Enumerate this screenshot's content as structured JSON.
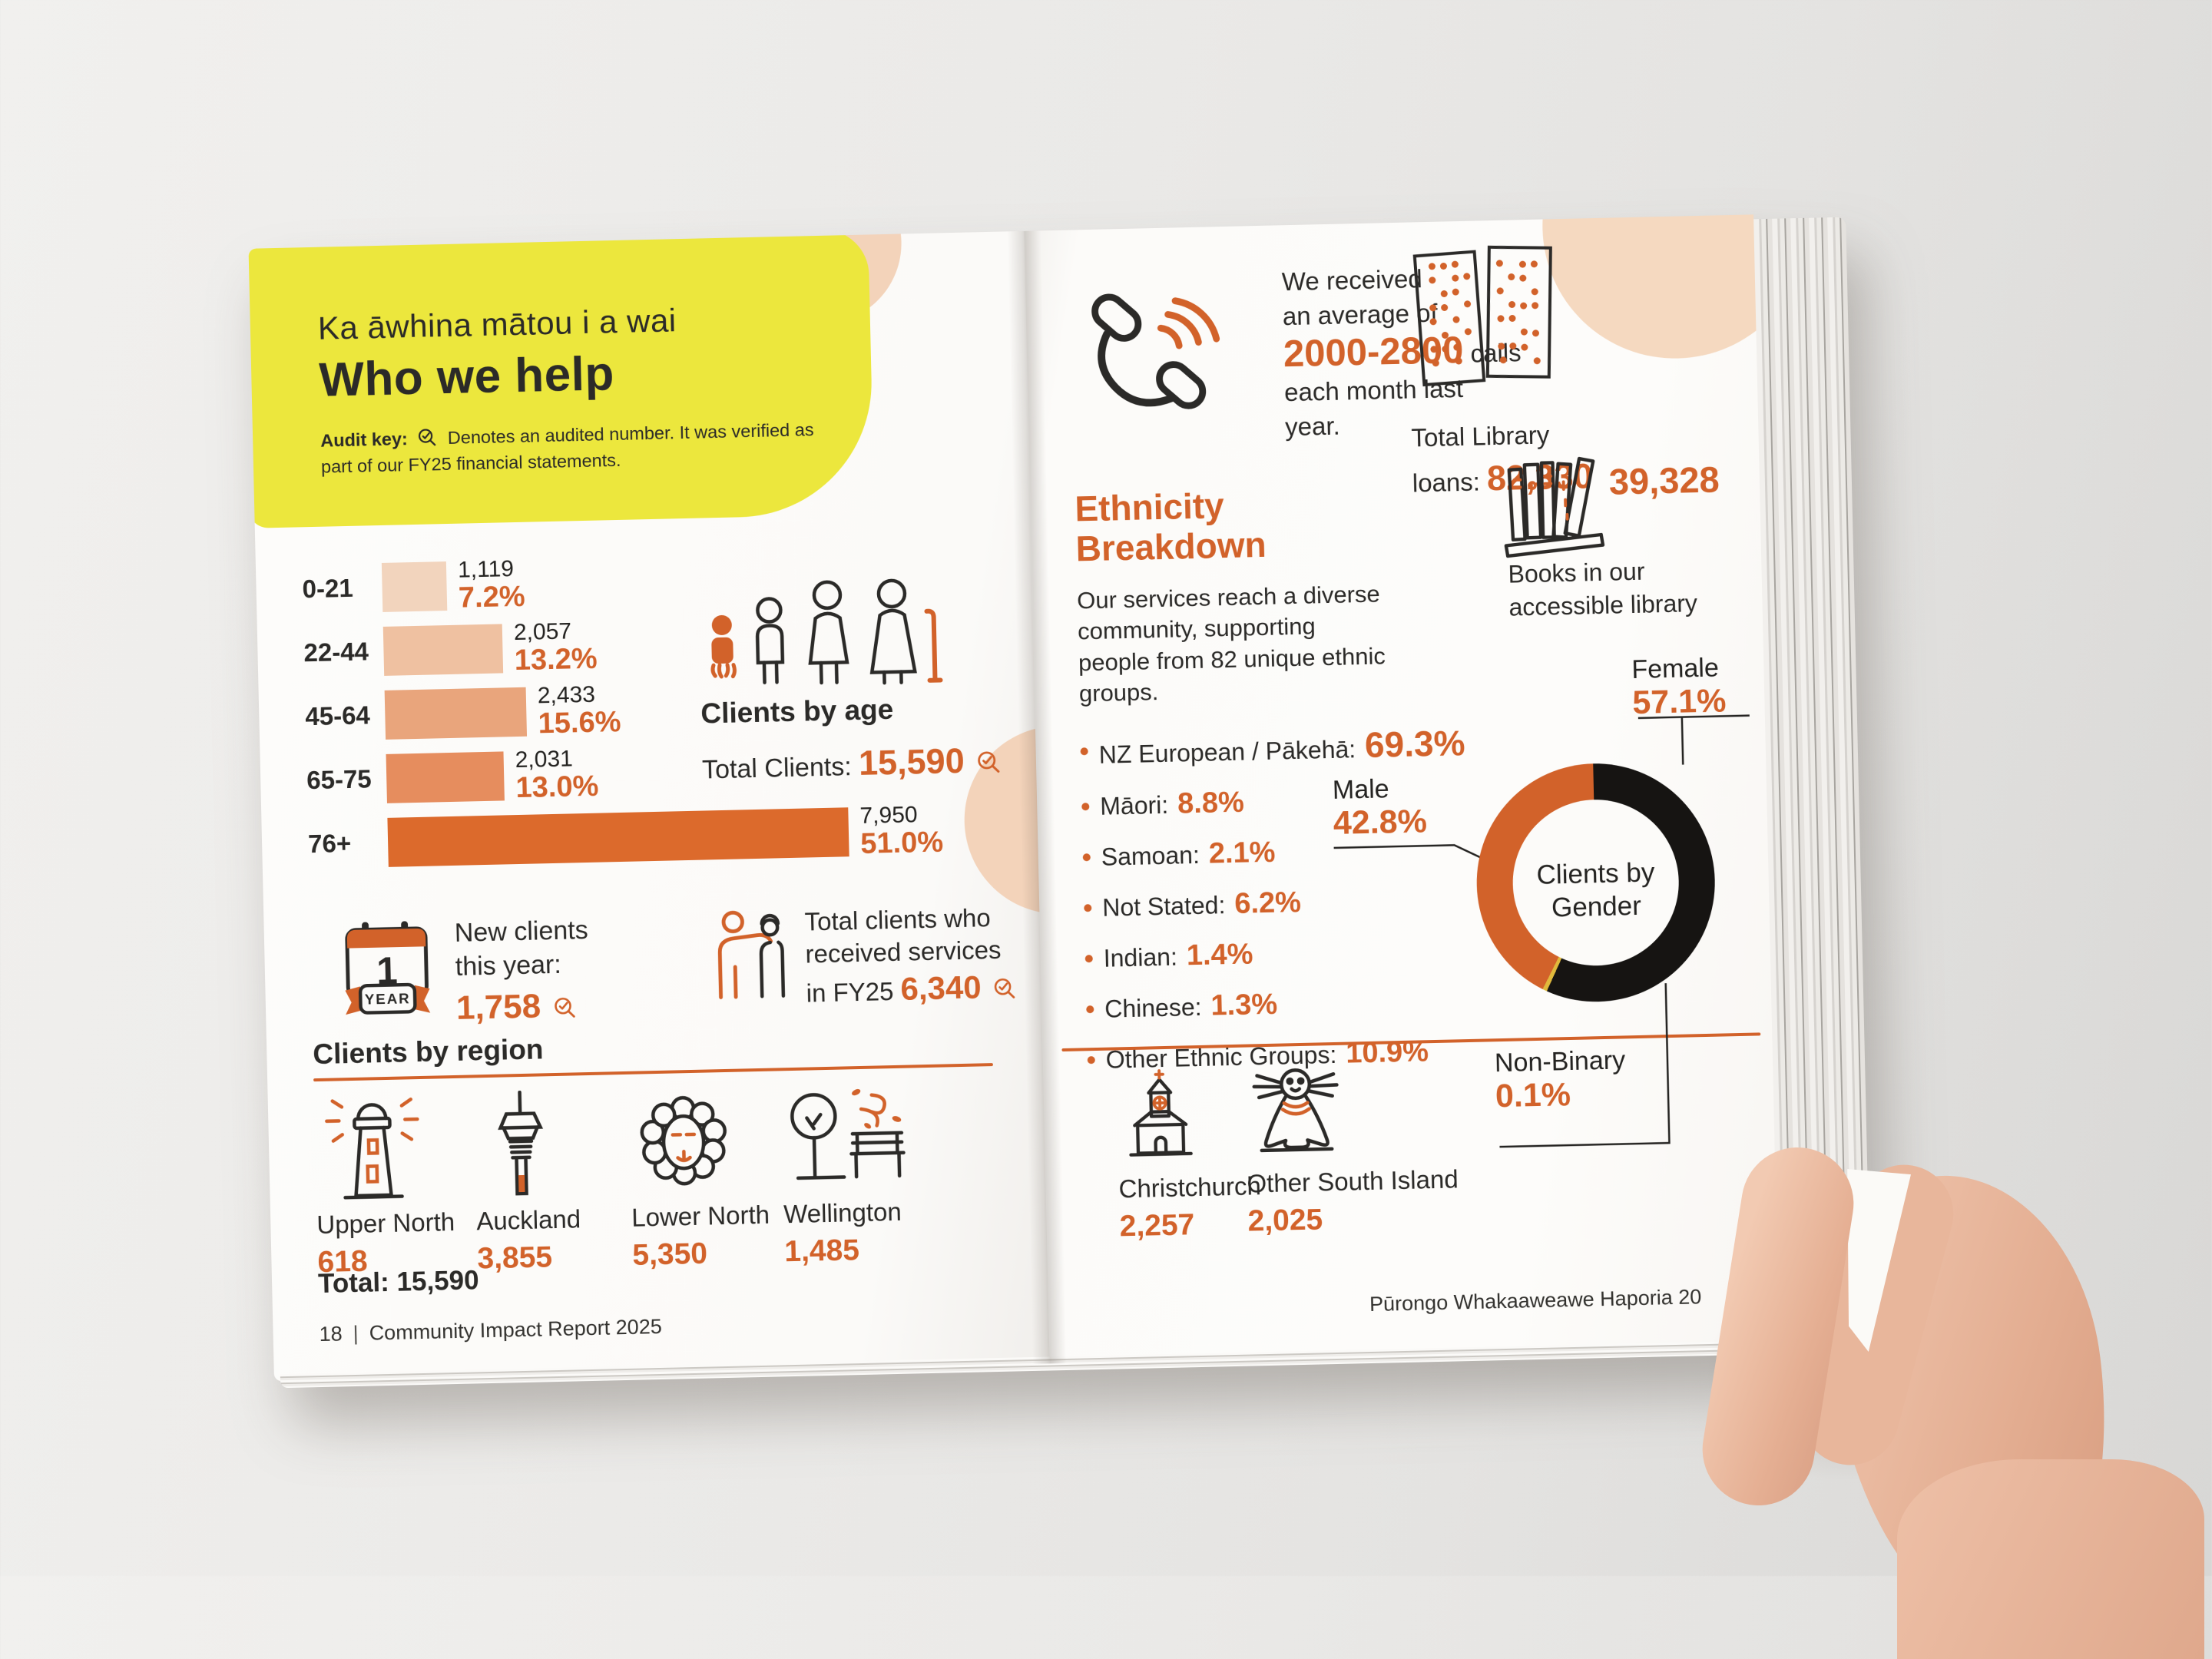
{
  "colors": {
    "accent_orange": "#d2622a",
    "highlight_yellow": "#ece73d",
    "decor_peach": "#f3d3ba",
    "donut_black": "#161412",
    "donut_nonbinary": "#e0b93c"
  },
  "left_page": {
    "subtitle_maori": "Ka āwhina mātou i a wai",
    "title": "Who we help",
    "audit_key_label": "Audit key:",
    "audit_key_text": "Denotes an audited number. It was verified as part of our FY25 financial statements.",
    "age_chart": {
      "type": "bar",
      "max_n": 7950,
      "max_w": 600,
      "rows": [
        {
          "label": "0-21",
          "value": "1,119",
          "pct": "7.2%",
          "n": 1119,
          "color": "#f2d4bd"
        },
        {
          "label": "22-44",
          "value": "2,057",
          "pct": "13.2%",
          "n": 2057,
          "color": "#efc1a1"
        },
        {
          "label": "45-64",
          "value": "2,433",
          "pct": "15.6%",
          "n": 2433,
          "color": "#e9a57c"
        },
        {
          "label": "65-75",
          "value": "2,031",
          "pct": "13.0%",
          "n": 2031,
          "color": "#e68d5e"
        },
        {
          "label": "76+",
          "value": "7,950",
          "pct": "51.0%",
          "n": 7950,
          "color": "#dc6a2c"
        }
      ]
    },
    "clients_by_age": {
      "caption": "Clients by age",
      "total_label": "Total Clients:",
      "total_value": "15,590"
    },
    "new_clients": {
      "line1": "New clients",
      "line2": "this year:",
      "value": "1,758",
      "calendar_number": "1",
      "calendar_label": "YEAR"
    },
    "services": {
      "line1": "Total clients who",
      "line2": "received services",
      "line3_prefix": "in FY25",
      "value": "6,340"
    },
    "region_heading": "Clients by region",
    "regions": [
      {
        "name": "Upper North",
        "value": "618",
        "icon": "lighthouse-icon"
      },
      {
        "name": "Auckland",
        "value": "3,855",
        "icon": "sky-tower-icon"
      },
      {
        "name": "Lower North",
        "value": "5,350",
        "icon": "sheep-icon"
      },
      {
        "name": "Wellington",
        "value": "1,485",
        "icon": "tree-bench-wind-icon"
      }
    ],
    "regions_total": "Total: 15,590",
    "footer_page_number": "18",
    "footer_title": "Community Impact Report 2025"
  },
  "right_page": {
    "calls": {
      "line1": "We received",
      "line2": "an average of",
      "range": "2000-2800",
      "after_range": " calls",
      "line4": "each month last year."
    },
    "library_loans": {
      "line1": "Total Library",
      "line2_label": "loans: ",
      "value": "82,330"
    },
    "ethnicity": {
      "heading_line1": "Ethnicity",
      "heading_line2": "Breakdown",
      "paragraph": "Our services reach a diverse community, supporting people from 82 unique ethnic groups.",
      "items": [
        {
          "label": "NZ European / Pākehā:",
          "pct": "69.3%"
        },
        {
          "label": "Māori:",
          "pct": "8.8%"
        },
        {
          "label": "Samoan:",
          "pct": "2.1%"
        },
        {
          "label": "Not Stated:",
          "pct": "6.2%"
        },
        {
          "label": "Indian:",
          "pct": "1.4%"
        },
        {
          "label": "Chinese:",
          "pct": "1.3%"
        },
        {
          "label": "Other Ethnic Groups:",
          "pct": "10.9%"
        }
      ]
    },
    "books": {
      "value": "39,328",
      "caption_line1": "Books in our",
      "caption_line2": "accessible library"
    },
    "gender": {
      "type": "donut",
      "center_line1": "Clients by",
      "center_line2": "Gender",
      "segments": [
        {
          "label": "Female",
          "pct": "57.1%",
          "num": 57.1,
          "color": "#161412"
        },
        {
          "label": "Non-Binary",
          "pct": "0.1%",
          "num": 0.1,
          "color": "#e0b93c"
        },
        {
          "label": "Male",
          "pct": "42.8%",
          "num": 42.8,
          "color": "#d2622a"
        }
      ]
    },
    "regions": [
      {
        "name": "Christchurch",
        "value": "2,257",
        "icon": "church-icon"
      },
      {
        "name": "Other South Island",
        "value": "2,025",
        "icon": "seal-icon"
      }
    ],
    "footer_title": "Pūrongo Whakaaweawe Haporia 20"
  }
}
